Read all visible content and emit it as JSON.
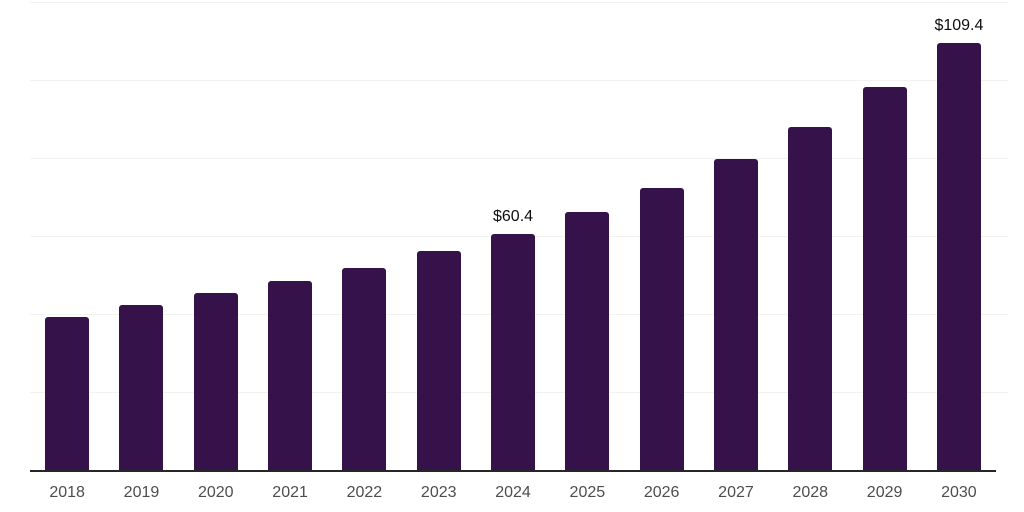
{
  "chart_data": {
    "type": "bar",
    "title": "",
    "xlabel": "",
    "ylabel": "",
    "categories": [
      "2018",
      "2019",
      "2020",
      "2021",
      "2022",
      "2023",
      "2024",
      "2025",
      "2026",
      "2027",
      "2028",
      "2029",
      "2030"
    ],
    "values": [
      39.2,
      42.4,
      45.3,
      48.5,
      51.9,
      56.2,
      60.4,
      66.2,
      72.2,
      79.7,
      88.0,
      98.1,
      109.4
    ],
    "data_labels": [
      "",
      "",
      "",
      "",
      "",
      "",
      "$60.4",
      "",
      "",
      "",
      "",
      "",
      "$109.4"
    ],
    "ylim": [
      0,
      120
    ],
    "gridlines": [
      20,
      40,
      60,
      80,
      100,
      120
    ],
    "grid": "horizontal",
    "legend": "none",
    "y_axis_labels_visible": false
  },
  "style": {
    "bar_color": "#35124a",
    "grid_color": "#f2f2f2",
    "axis_color": "#262626",
    "tick_label_color": "#4d4d4d",
    "value_label_color": "#0d0d0d",
    "background": "#ffffff"
  }
}
